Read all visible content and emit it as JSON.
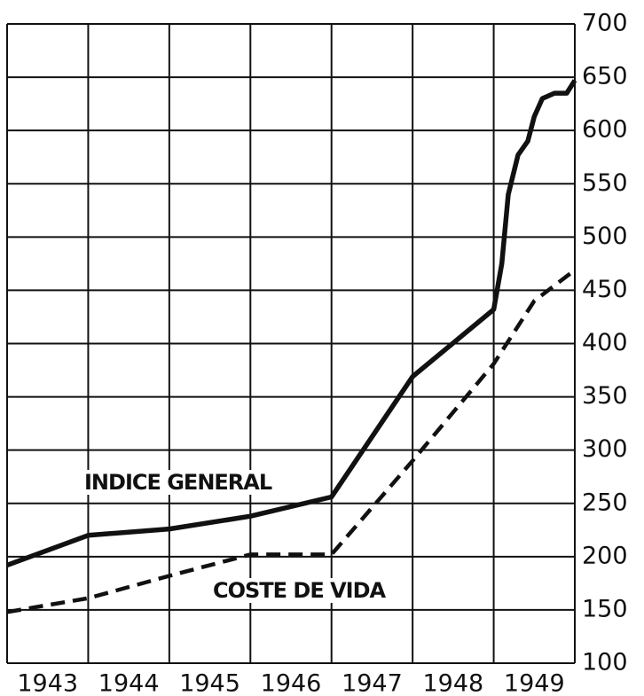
{
  "chart_data": {
    "type": "line",
    "categories": [
      "1943",
      "1944",
      "1945",
      "1946",
      "1947",
      "1948",
      "1949"
    ],
    "xlim": [
      1943,
      1950
    ],
    "xticks": [
      1943,
      1944,
      1945,
      1946,
      1947,
      1948,
      1949,
      1950
    ],
    "ylim": [
      100,
      700
    ],
    "yticks": [
      100,
      150,
      200,
      250,
      300,
      350,
      400,
      450,
      500,
      550,
      600,
      650,
      700
    ],
    "grid": true,
    "y_axis_side": "right",
    "series": [
      {
        "name": "INDICE GENERAL",
        "color": "#111111",
        "style": "solid",
        "x": [
          1943,
          1944,
          1945,
          1946,
          1947,
          1948,
          1949,
          1949.1,
          1949.18,
          1949.3,
          1949.42,
          1949.5,
          1949.6,
          1949.75,
          1949.9,
          1950
        ],
        "values": [
          192,
          220,
          226,
          238,
          256,
          369,
          432,
          475,
          540,
          577,
          590,
          613,
          630,
          635,
          635,
          647
        ]
      },
      {
        "name": "COSTE DE VIDA",
        "color": "#111111",
        "style": "dashed",
        "x": [
          1943,
          1944,
          1945,
          1946,
          1947,
          1948,
          1949,
          1949.5,
          1950
        ],
        "values": [
          148,
          161,
          182,
          202,
          202,
          290,
          381,
          440,
          469
        ]
      }
    ]
  }
}
